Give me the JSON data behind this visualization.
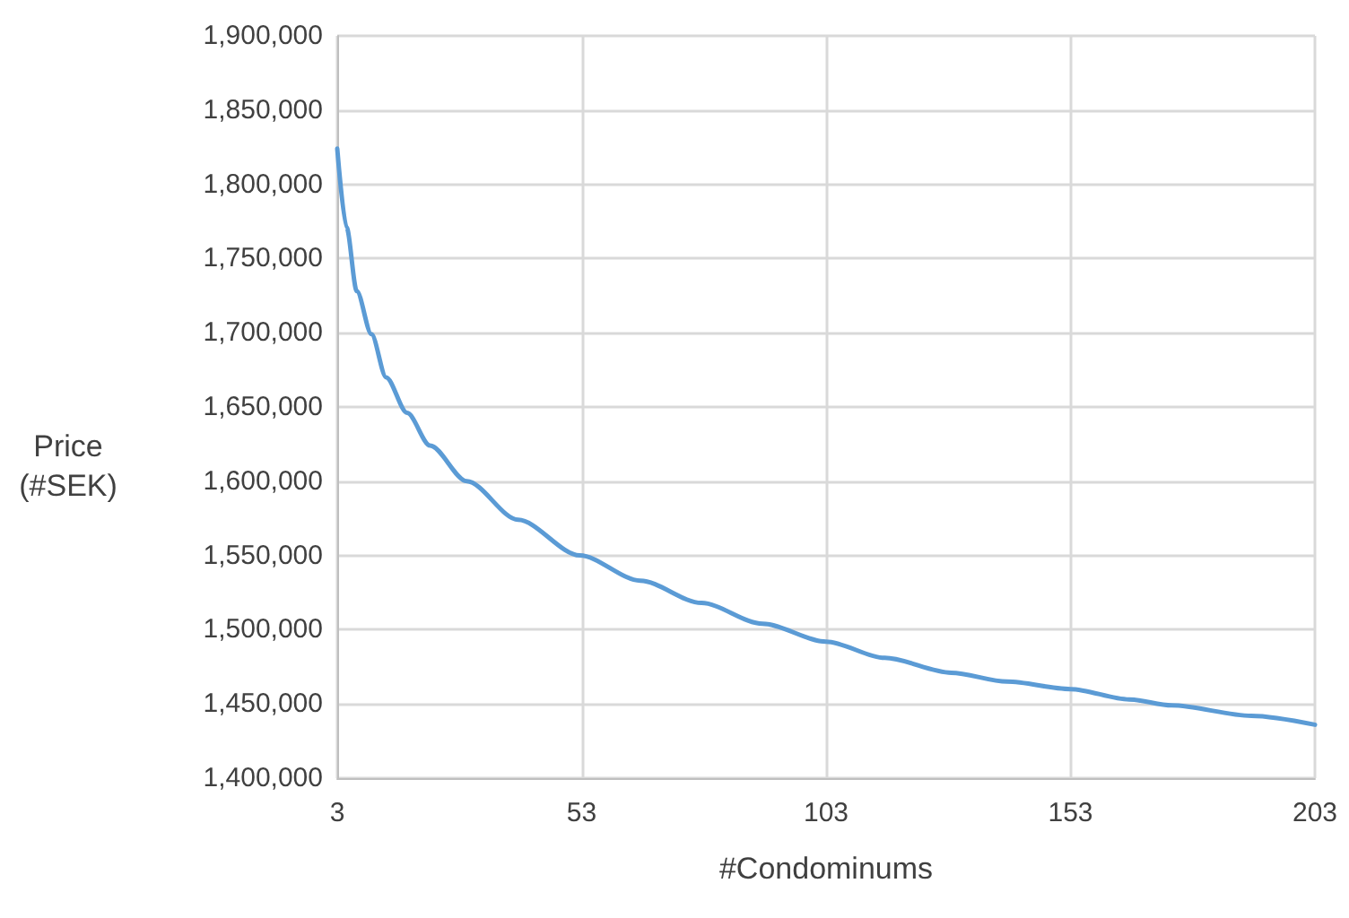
{
  "chart_data": {
    "type": "line",
    "xlabel": "#Condominums",
    "ylabel": "Price\n(#SEK)",
    "x": [
      3,
      4.9,
      7,
      10,
      13,
      17.3,
      22,
      29.5,
      40,
      52.6,
      65,
      77.5,
      90,
      103,
      115,
      128.6,
      140,
      153,
      165,
      173.7,
      190,
      203
    ],
    "series": [
      {
        "color": "#5b9bd5",
        "values": [
          1824000,
          1771000,
          1728000,
          1699000,
          1670000,
          1646000,
          1624000,
          1600000,
          1574000,
          1550000,
          1533000,
          1518000,
          1504000,
          1492000,
          1481000,
          1471000,
          1465000,
          1460000,
          1453000,
          1449000,
          1442000,
          1436000
        ]
      }
    ],
    "xlim": [
      3,
      203
    ],
    "xticks": [
      3,
      53,
      103,
      153,
      203
    ],
    "ylim": [
      1400000,
      1900000
    ],
    "yticks": [
      {
        "value": 1400000,
        "label": "1,400,000"
      },
      {
        "value": 1450000,
        "label": "1,450,000"
      },
      {
        "value": 1500000,
        "label": "1,500,000"
      },
      {
        "value": 1550000,
        "label": "1,550,000"
      },
      {
        "value": 1600000,
        "label": "1,600,000"
      },
      {
        "value": 1650000,
        "label": "1,650,000"
      },
      {
        "value": 1700000,
        "label": "1,700,000"
      },
      {
        "value": 1750000,
        "label": "1,750,000"
      },
      {
        "value": 1800000,
        "label": "1,800,000"
      },
      {
        "value": 1850000,
        "label": "1,850,000"
      },
      {
        "value": 1900000,
        "label": "1,900,000"
      }
    ],
    "grid": true,
    "marker": "none",
    "line_style": "solid"
  }
}
